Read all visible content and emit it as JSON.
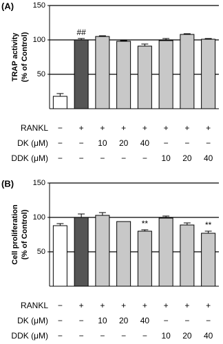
{
  "chart_data": [
    {
      "type": "bar",
      "panel": "(A)",
      "ylabel": [
        "TRAP activity",
        "(% of Control)"
      ],
      "values": [
        18,
        100,
        105,
        98,
        91,
        99,
        108,
        101
      ],
      "errors": [
        4,
        2,
        1,
        1,
        3,
        3,
        1,
        1
      ],
      "colors": [
        "#ffffff",
        "#555555",
        "#c8c8c8",
        "#c8c8c8",
        "#c8c8c8",
        "#c8c8c8",
        "#c8c8c8",
        "#c8c8c8"
      ],
      "markers": [
        null,
        "##",
        null,
        null,
        null,
        null,
        null,
        null
      ],
      "ylim": [
        0,
        150
      ],
      "yticks": [
        50,
        100,
        150
      ],
      "grid": true,
      "conditions": [
        {
          "label": "RANKL",
          "values": [
            "−",
            "+",
            "+",
            "+",
            "+",
            "+",
            "+",
            "+"
          ]
        },
        {
          "label": "DK (μM)",
          "values": [
            "−",
            "−",
            "10",
            "20",
            "40",
            "−",
            "−",
            "−"
          ]
        },
        {
          "label": "DDK (μM)",
          "values": [
            "−",
            "−",
            "−",
            "−",
            "−",
            "10",
            "20",
            "40"
          ]
        }
      ]
    },
    {
      "type": "bar",
      "panel": "(B)",
      "ylabel": [
        "Cell proliferation",
        "(% of Control)"
      ],
      "values": [
        88,
        100,
        103,
        94,
        80,
        99,
        89,
        77
      ],
      "errors": [
        3,
        5,
        4,
        0,
        2,
        3,
        3,
        3
      ],
      "colors": [
        "#ffffff",
        "#555555",
        "#c8c8c8",
        "#c8c8c8",
        "#c8c8c8",
        "#c8c8c8",
        "#c8c8c8",
        "#c8c8c8"
      ],
      "markers": [
        null,
        null,
        null,
        null,
        "**",
        null,
        null,
        "**"
      ],
      "ylim": [
        0,
        150
      ],
      "yticks": [
        50,
        100,
        150
      ],
      "grid": true,
      "conditions": [
        {
          "label": "RANKL",
          "values": [
            "−",
            "+",
            "+",
            "+",
            "+",
            "+",
            "+",
            "+"
          ]
        },
        {
          "label": "DK (μM)",
          "values": [
            "−",
            "−",
            "10",
            "20",
            "40",
            "−",
            "−",
            "−"
          ]
        },
        {
          "label": "DDK (μM)",
          "values": [
            "−",
            "−",
            "−",
            "−",
            "−",
            "10",
            "20",
            "40"
          ]
        }
      ]
    }
  ]
}
